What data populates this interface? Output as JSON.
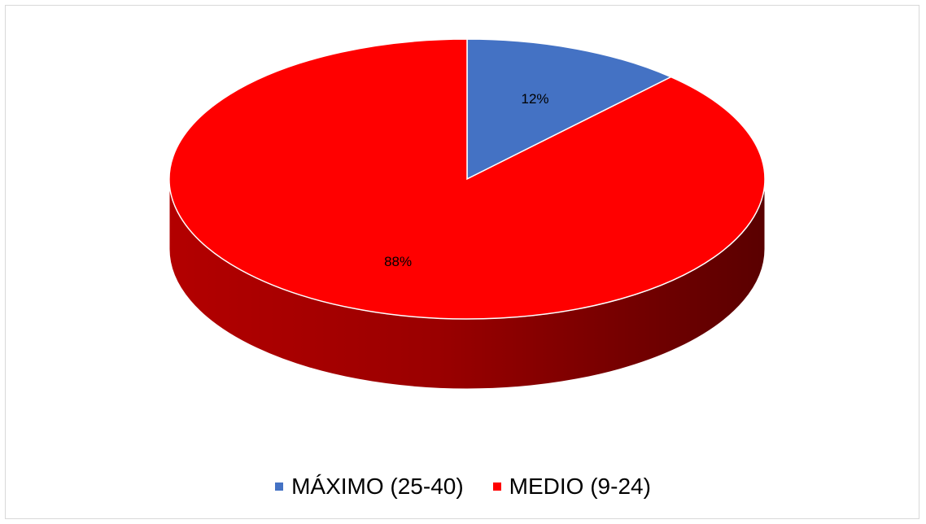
{
  "chart_data": {
    "type": "pie",
    "title": "",
    "three_d": true,
    "slices": [
      {
        "label": "MÁXIMO (25-40)",
        "value": 12,
        "display": "12%",
        "color": "#4472c4"
      },
      {
        "label": "MEDIO (9-24)",
        "value": 88,
        "display": "88%",
        "color": "#ff0000"
      }
    ],
    "legend_position": "bottom"
  }
}
